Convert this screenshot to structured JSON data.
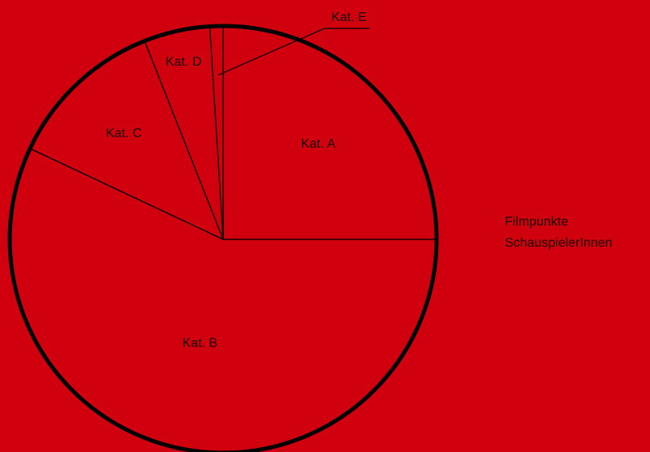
{
  "chart_data": {
    "type": "pie",
    "categories": [
      "Kat. A",
      "Kat. B",
      "Kat. C",
      "Kat. D",
      "Kat. E"
    ],
    "values": [
      25,
      57,
      12,
      5,
      1
    ],
    "color": "#d0000f",
    "side_labels": [
      "Filmpunkte",
      "SchauspielerInnen"
    ]
  }
}
